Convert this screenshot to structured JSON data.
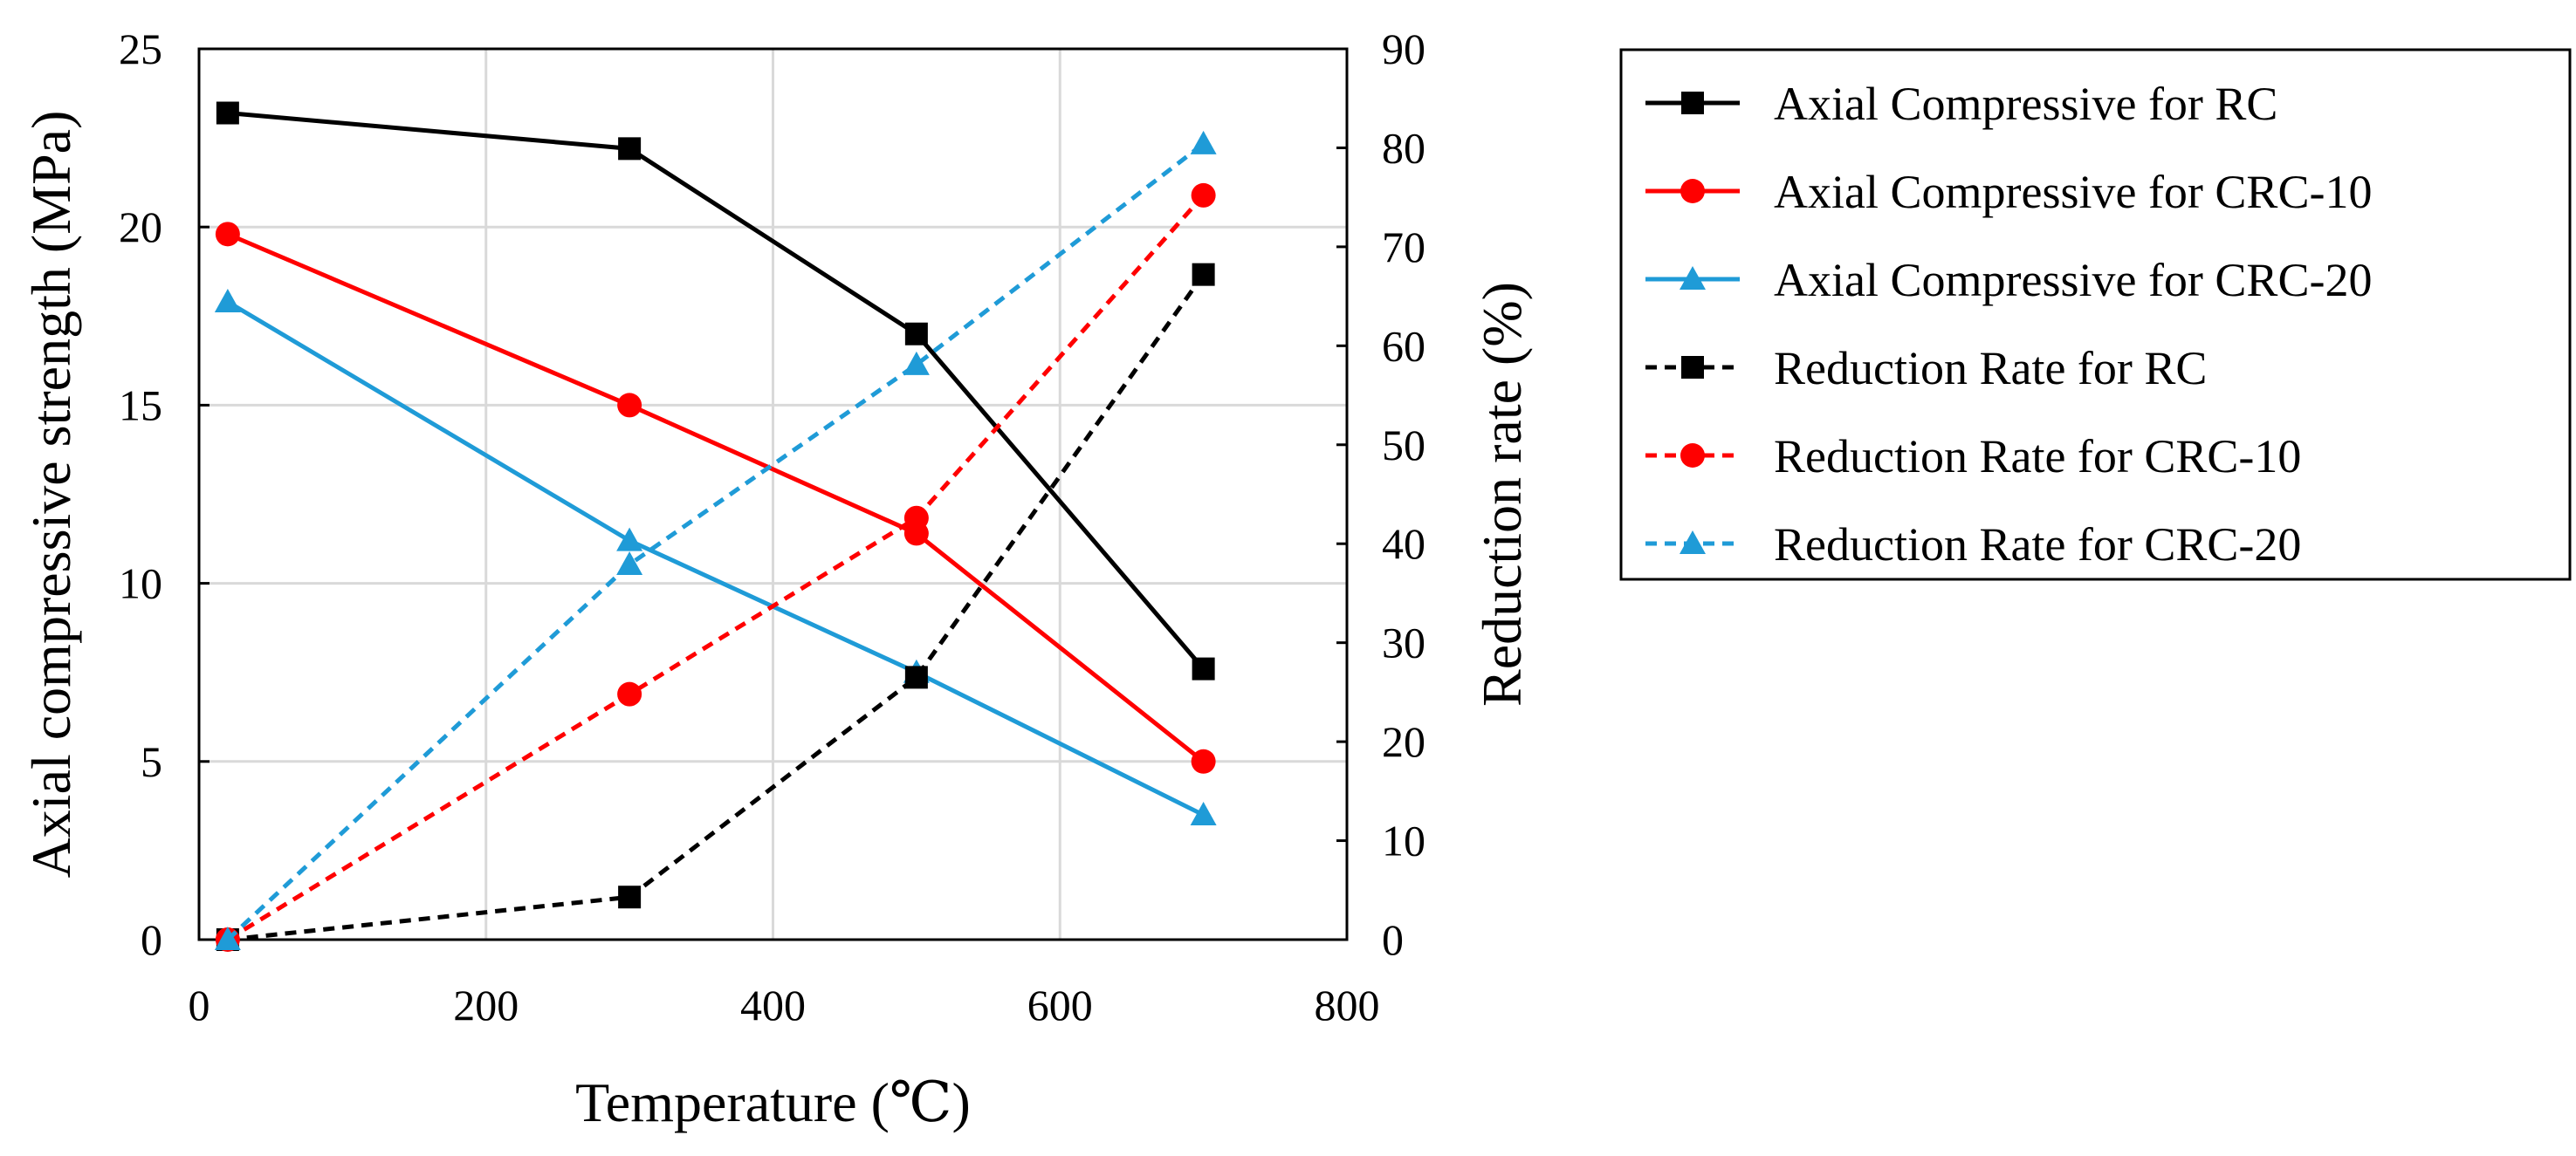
{
  "chart_data": {
    "type": "line",
    "x": [
      20,
      300,
      500,
      700
    ],
    "xlabel": "Temperature (℃)",
    "ylabel": "Axial compressive strength (MPa)",
    "y2label": "Reduction rate (%)",
    "xlim": [
      0,
      800
    ],
    "ylim": [
      0,
      25
    ],
    "y2lim": [
      0,
      90
    ],
    "xticks": [
      "0",
      "200",
      "400",
      "600",
      "800"
    ],
    "yticks": [
      "0",
      "5",
      "10",
      "15",
      "20",
      "25"
    ],
    "y2ticks": [
      "0",
      "10",
      "20",
      "30",
      "40",
      "50",
      "60",
      "70",
      "80",
      "90"
    ],
    "grid": true,
    "legend_position": "right",
    "series": [
      {
        "name": "Axial Compressive for RC",
        "axis": "left",
        "values": [
          23.2,
          22.2,
          17.0,
          7.6
        ],
        "color": "#000000",
        "marker": "square",
        "dash": "solid"
      },
      {
        "name": "Axial Compressive for CRC-10",
        "axis": "left",
        "values": [
          19.8,
          15.0,
          11.4,
          5.0
        ],
        "color": "#ff0000",
        "marker": "circle",
        "dash": "solid"
      },
      {
        "name": "Axial Compressive for CRC-20",
        "axis": "left",
        "values": [
          17.9,
          11.2,
          7.5,
          3.5
        ],
        "color": "#1f9bd7",
        "marker": "triangle",
        "dash": "solid"
      },
      {
        "name": "Reduction Rate for RC",
        "axis": "right",
        "values": [
          0,
          4.3,
          26.5,
          67.2
        ],
        "color": "#000000",
        "marker": "square",
        "dash": "dashed"
      },
      {
        "name": "Reduction Rate for CRC-10",
        "axis": "right",
        "values": [
          0,
          24.8,
          42.6,
          75.2
        ],
        "color": "#ff0000",
        "marker": "circle",
        "dash": "dashed"
      },
      {
        "name": "Reduction Rate for CRC-20",
        "axis": "right",
        "values": [
          0,
          37.9,
          58.1,
          80.4
        ],
        "color": "#1f9bd7",
        "marker": "triangle",
        "dash": "dashed"
      }
    ]
  }
}
